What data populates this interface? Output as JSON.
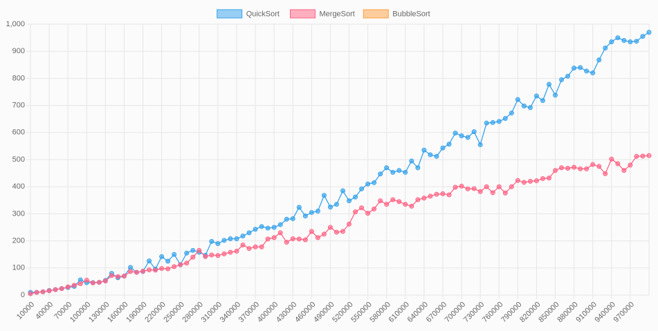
{
  "chart_data": {
    "type": "line",
    "categories": [
      10000,
      null,
      null,
      40000,
      null,
      null,
      70000,
      null,
      null,
      100000,
      null,
      null,
      130000,
      null,
      null,
      160000,
      null,
      null,
      190000,
      null,
      null,
      220000,
      null,
      null,
      250000,
      null,
      null,
      280000,
      null,
      null,
      310000,
      null,
      null,
      340000,
      null,
      null,
      370000,
      null,
      null,
      400000,
      null,
      null,
      430000,
      null,
      null,
      460000,
      null,
      null,
      490000,
      null,
      null,
      520000,
      null,
      null,
      550000,
      null,
      null,
      580000,
      null,
      null,
      610000,
      null,
      null,
      640000,
      null,
      null,
      670000,
      null,
      null,
      700000,
      null,
      null,
      730000,
      null,
      null,
      760000,
      null,
      null,
      790000,
      null,
      null,
      820000,
      null,
      null,
      850000,
      null,
      null,
      880000,
      null,
      null,
      910000,
      null,
      null,
      940000,
      null,
      null,
      970000,
      null,
      null,
      null
    ],
    "series": [
      {
        "name": "QuickSort",
        "color": "#36a2eb",
        "values": [
          10,
          10,
          12,
          17,
          20,
          24,
          28,
          32,
          56,
          46,
          46,
          47,
          54,
          80,
          64,
          70,
          102,
          84,
          87,
          126,
          96,
          142,
          125,
          150,
          112,
          155,
          165,
          158,
          147,
          198,
          190,
          202,
          208,
          208,
          218,
          230,
          243,
          253,
          247,
          250,
          260,
          280,
          282,
          324,
          292,
          305,
          310,
          368,
          325,
          335,
          385,
          348,
          362,
          392,
          410,
          415,
          447,
          470,
          453,
          460,
          453,
          495,
          470,
          535,
          518,
          512,
          543,
          557,
          598,
          588,
          582,
          603,
          555,
          635,
          637,
          641,
          652,
          672,
          722,
          698,
          692,
          735,
          718,
          778,
          738,
          795,
          808,
          838,
          840,
          827,
          820,
          868,
          912,
          935,
          950,
          940,
          935,
          937,
          955,
          970
        ]
      },
      {
        "name": "MergeSort",
        "color": "#ff6384",
        "values": [
          5,
          10,
          12,
          16,
          20,
          24,
          30,
          36,
          42,
          55,
          45,
          47,
          52,
          72,
          68,
          70,
          87,
          84,
          88,
          93,
          92,
          98,
          97,
          105,
          112,
          118,
          140,
          165,
          142,
          148,
          146,
          152,
          158,
          162,
          185,
          172,
          178,
          178,
          207,
          212,
          230,
          195,
          208,
          207,
          204,
          235,
          212,
          225,
          250,
          232,
          235,
          262,
          307,
          322,
          302,
          318,
          348,
          335,
          352,
          345,
          335,
          328,
          352,
          358,
          365,
          372,
          374,
          370,
          398,
          402,
          392,
          393,
          382,
          400,
          378,
          400,
          377,
          400,
          423,
          416,
          420,
          422,
          430,
          432,
          460,
          470,
          468,
          472,
          466,
          466,
          482,
          475,
          448,
          502,
          485,
          460,
          480,
          512,
          513,
          515
        ]
      },
      {
        "name": "BubbleSort",
        "color": "#ff9f40",
        "values": [
          null,
          null,
          null,
          null,
          null,
          null,
          null,
          null,
          null,
          null,
          null,
          null,
          null,
          null,
          null,
          null,
          null,
          null,
          null,
          null,
          null,
          null,
          null,
          null,
          null,
          null,
          null,
          null,
          null,
          null,
          null,
          null,
          null,
          null,
          null,
          null,
          null,
          null,
          null,
          null,
          null,
          null,
          null,
          null,
          null,
          null,
          null,
          null,
          null,
          null,
          null,
          null,
          null,
          null,
          null,
          null,
          null,
          null,
          null,
          null,
          null,
          null,
          null,
          null,
          null,
          null,
          null,
          null,
          null,
          null,
          null,
          null,
          null,
          null,
          null,
          null,
          null,
          null,
          null,
          null,
          null,
          null,
          null,
          null,
          null,
          null,
          null,
          null,
          null,
          null,
          null,
          null,
          null,
          null,
          null,
          null,
          null,
          null,
          null,
          null
        ]
      }
    ],
    "ylim": [
      0,
      1000
    ],
    "yticks": [
      0,
      100,
      200,
      300,
      400,
      500,
      600,
      700,
      800,
      900,
      {
        "value": 1000,
        "label": "1,000"
      }
    ],
    "grid": true,
    "legend": "top"
  }
}
